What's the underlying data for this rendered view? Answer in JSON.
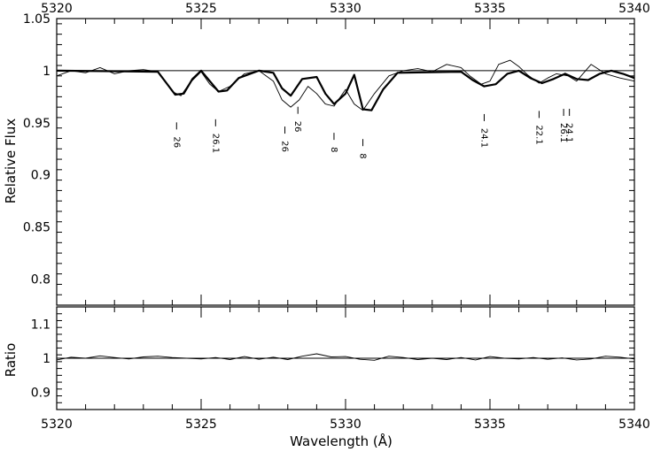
{
  "chart_data": [
    {
      "type": "line",
      "panel": "top",
      "xlabel": "",
      "ylabel": "Relative Flux",
      "xlim": [
        5320,
        5340
      ],
      "ylim": [
        0.775,
        1.05
      ],
      "x_ticks": [
        5320,
        5325,
        5330,
        5335,
        5340
      ],
      "x_tick_labels": [
        "5320",
        "5325",
        "5330",
        "5335",
        "5340"
      ],
      "y_ticks": [
        0.8,
        0.85,
        0.9,
        0.95,
        1,
        1.05
      ],
      "y_tick_labels": [
        "0.8",
        "0.85",
        "0.9",
        "0.95",
        "1",
        "1.05"
      ],
      "reference_line": 1,
      "series": [
        {
          "style": "thin",
          "x": [
            5320,
            5320.5,
            5321,
            5321.5,
            5322,
            5322.5,
            5323,
            5323.5,
            5324,
            5324.3,
            5324.6,
            5325,
            5325.3,
            5325.6,
            5326,
            5326.5,
            5327,
            5327.5,
            5327.8,
            5328.1,
            5328.4,
            5328.7,
            5329,
            5329.3,
            5329.6,
            5330,
            5330.3,
            5330.6,
            5331,
            5331.5,
            5332,
            5332.5,
            5333,
            5333.5,
            5334,
            5334.3,
            5334.7,
            5335,
            5335.3,
            5335.7,
            5336,
            5336.3,
            5336.7,
            5337,
            5337.3,
            5337.7,
            5338,
            5338.5,
            5339,
            5339.5,
            5340
          ],
          "y": [
            0.995,
            1.0,
            0.998,
            1.003,
            0.997,
            1.0,
            1.001,
            0.999,
            0.98,
            0.976,
            0.988,
            0.999,
            0.987,
            0.98,
            0.985,
            0.997,
            1.0,
            0.99,
            0.972,
            0.965,
            0.972,
            0.985,
            0.978,
            0.968,
            0.966,
            0.982,
            0.968,
            0.962,
            0.978,
            0.995,
            1.0,
            1.002,
            0.999,
            1.006,
            1.003,
            0.995,
            0.987,
            0.99,
            1.006,
            1.01,
            1.004,
            0.996,
            0.988,
            0.993,
            0.997,
            0.995,
            0.99,
            1.006,
            0.997,
            0.993,
            0.99
          ]
        },
        {
          "style": "thick",
          "x": [
            5320,
            5323.5,
            5323.8,
            5324.1,
            5324.4,
            5324.7,
            5325,
            5325.3,
            5325.6,
            5325.9,
            5326.3,
            5327,
            5327.5,
            5327.8,
            5328.1,
            5328.5,
            5329,
            5329.3,
            5329.6,
            5330,
            5330.3,
            5330.6,
            5330.9,
            5331.3,
            5331.8,
            5334,
            5334.4,
            5334.8,
            5335.2,
            5335.6,
            5336,
            5336.4,
            5336.8,
            5337.2,
            5337.6,
            5338,
            5338.4,
            5338.8,
            5339.2,
            5339.6,
            5340
          ],
          "y": [
            1.0,
            0.999,
            0.988,
            0.977,
            0.978,
            0.992,
            1.0,
            0.99,
            0.98,
            0.981,
            0.993,
            1.0,
            0.998,
            0.983,
            0.976,
            0.992,
            0.994,
            0.978,
            0.968,
            0.978,
            0.996,
            0.963,
            0.962,
            0.982,
            0.998,
            0.999,
            0.991,
            0.985,
            0.987,
            0.997,
            1.0,
            0.993,
            0.988,
            0.992,
            0.997,
            0.992,
            0.991,
            0.997,
            1.0,
            0.997,
            0.993
          ]
        }
      ],
      "line_identifications": [
        {
          "label": "26",
          "wavelength": 5324.15,
          "tick_flux": 0.947
        },
        {
          "label": "26.1",
          "wavelength": 5325.5,
          "tick_flux": 0.95
        },
        {
          "label": "26",
          "wavelength": 5327.9,
          "tick_flux": 0.943
        },
        {
          "label": "26",
          "wavelength": 5328.35,
          "tick_flux": 0.962
        },
        {
          "label": "8",
          "wavelength": 5329.6,
          "tick_flux": 0.937
        },
        {
          "label": "8",
          "wavelength": 5330.6,
          "tick_flux": 0.931
        },
        {
          "label": "24.1",
          "wavelength": 5334.8,
          "tick_flux": 0.955
        },
        {
          "label": "22.1",
          "wavelength": 5336.7,
          "tick_flux": 0.958
        },
        {
          "label": "26.1",
          "wavelength": 5337.55,
          "tick_flux": 0.96
        },
        {
          "label": "24.1",
          "wavelength": 5337.75,
          "tick_flux": 0.96
        }
      ]
    },
    {
      "type": "line",
      "panel": "bottom",
      "xlabel": "Wavelength (Å)",
      "ylabel": "Ratio",
      "xlim": [
        5320,
        5340
      ],
      "ylim": [
        0.85,
        1.15
      ],
      "x_ticks": [
        5320,
        5325,
        5330,
        5335,
        5340
      ],
      "x_tick_labels": [
        "5320",
        "5325",
        "5330",
        "5335",
        "5340"
      ],
      "y_ticks": [
        0.9,
        1,
        1.1
      ],
      "y_tick_labels": [
        "0.9",
        "1",
        "1.1"
      ],
      "reference_line": 1,
      "series": [
        {
          "style": "thin",
          "x": [
            5320,
            5320.5,
            5321,
            5321.5,
            5322,
            5322.5,
            5323,
            5323.5,
            5324,
            5324.5,
            5325,
            5325.5,
            5326,
            5326.5,
            5327,
            5327.5,
            5328,
            5328.5,
            5329,
            5329.5,
            5330,
            5330.5,
            5331,
            5331.5,
            5332,
            5332.5,
            5333,
            5333.5,
            5334,
            5334.5,
            5335,
            5335.5,
            5336,
            5336.5,
            5337,
            5337.5,
            5338,
            5338.5,
            5339,
            5339.5,
            5340
          ],
          "y": [
            0.995,
            1.003,
            1.0,
            1.007,
            1.002,
            0.998,
            1.004,
            1.006,
            1.002,
            1.0,
            0.998,
            1.002,
            0.996,
            1.005,
            0.997,
            1.003,
            0.996,
            1.006,
            1.013,
            1.004,
            1.005,
            0.997,
            0.994,
            1.006,
            1.002,
            0.996,
            1.0,
            0.996,
            1.002,
            0.995,
            1.005,
            1.0,
            0.998,
            1.002,
            0.997,
            1.001,
            0.995,
            0.998,
            1.006,
            1.003,
            0.998
          ]
        }
      ]
    }
  ]
}
